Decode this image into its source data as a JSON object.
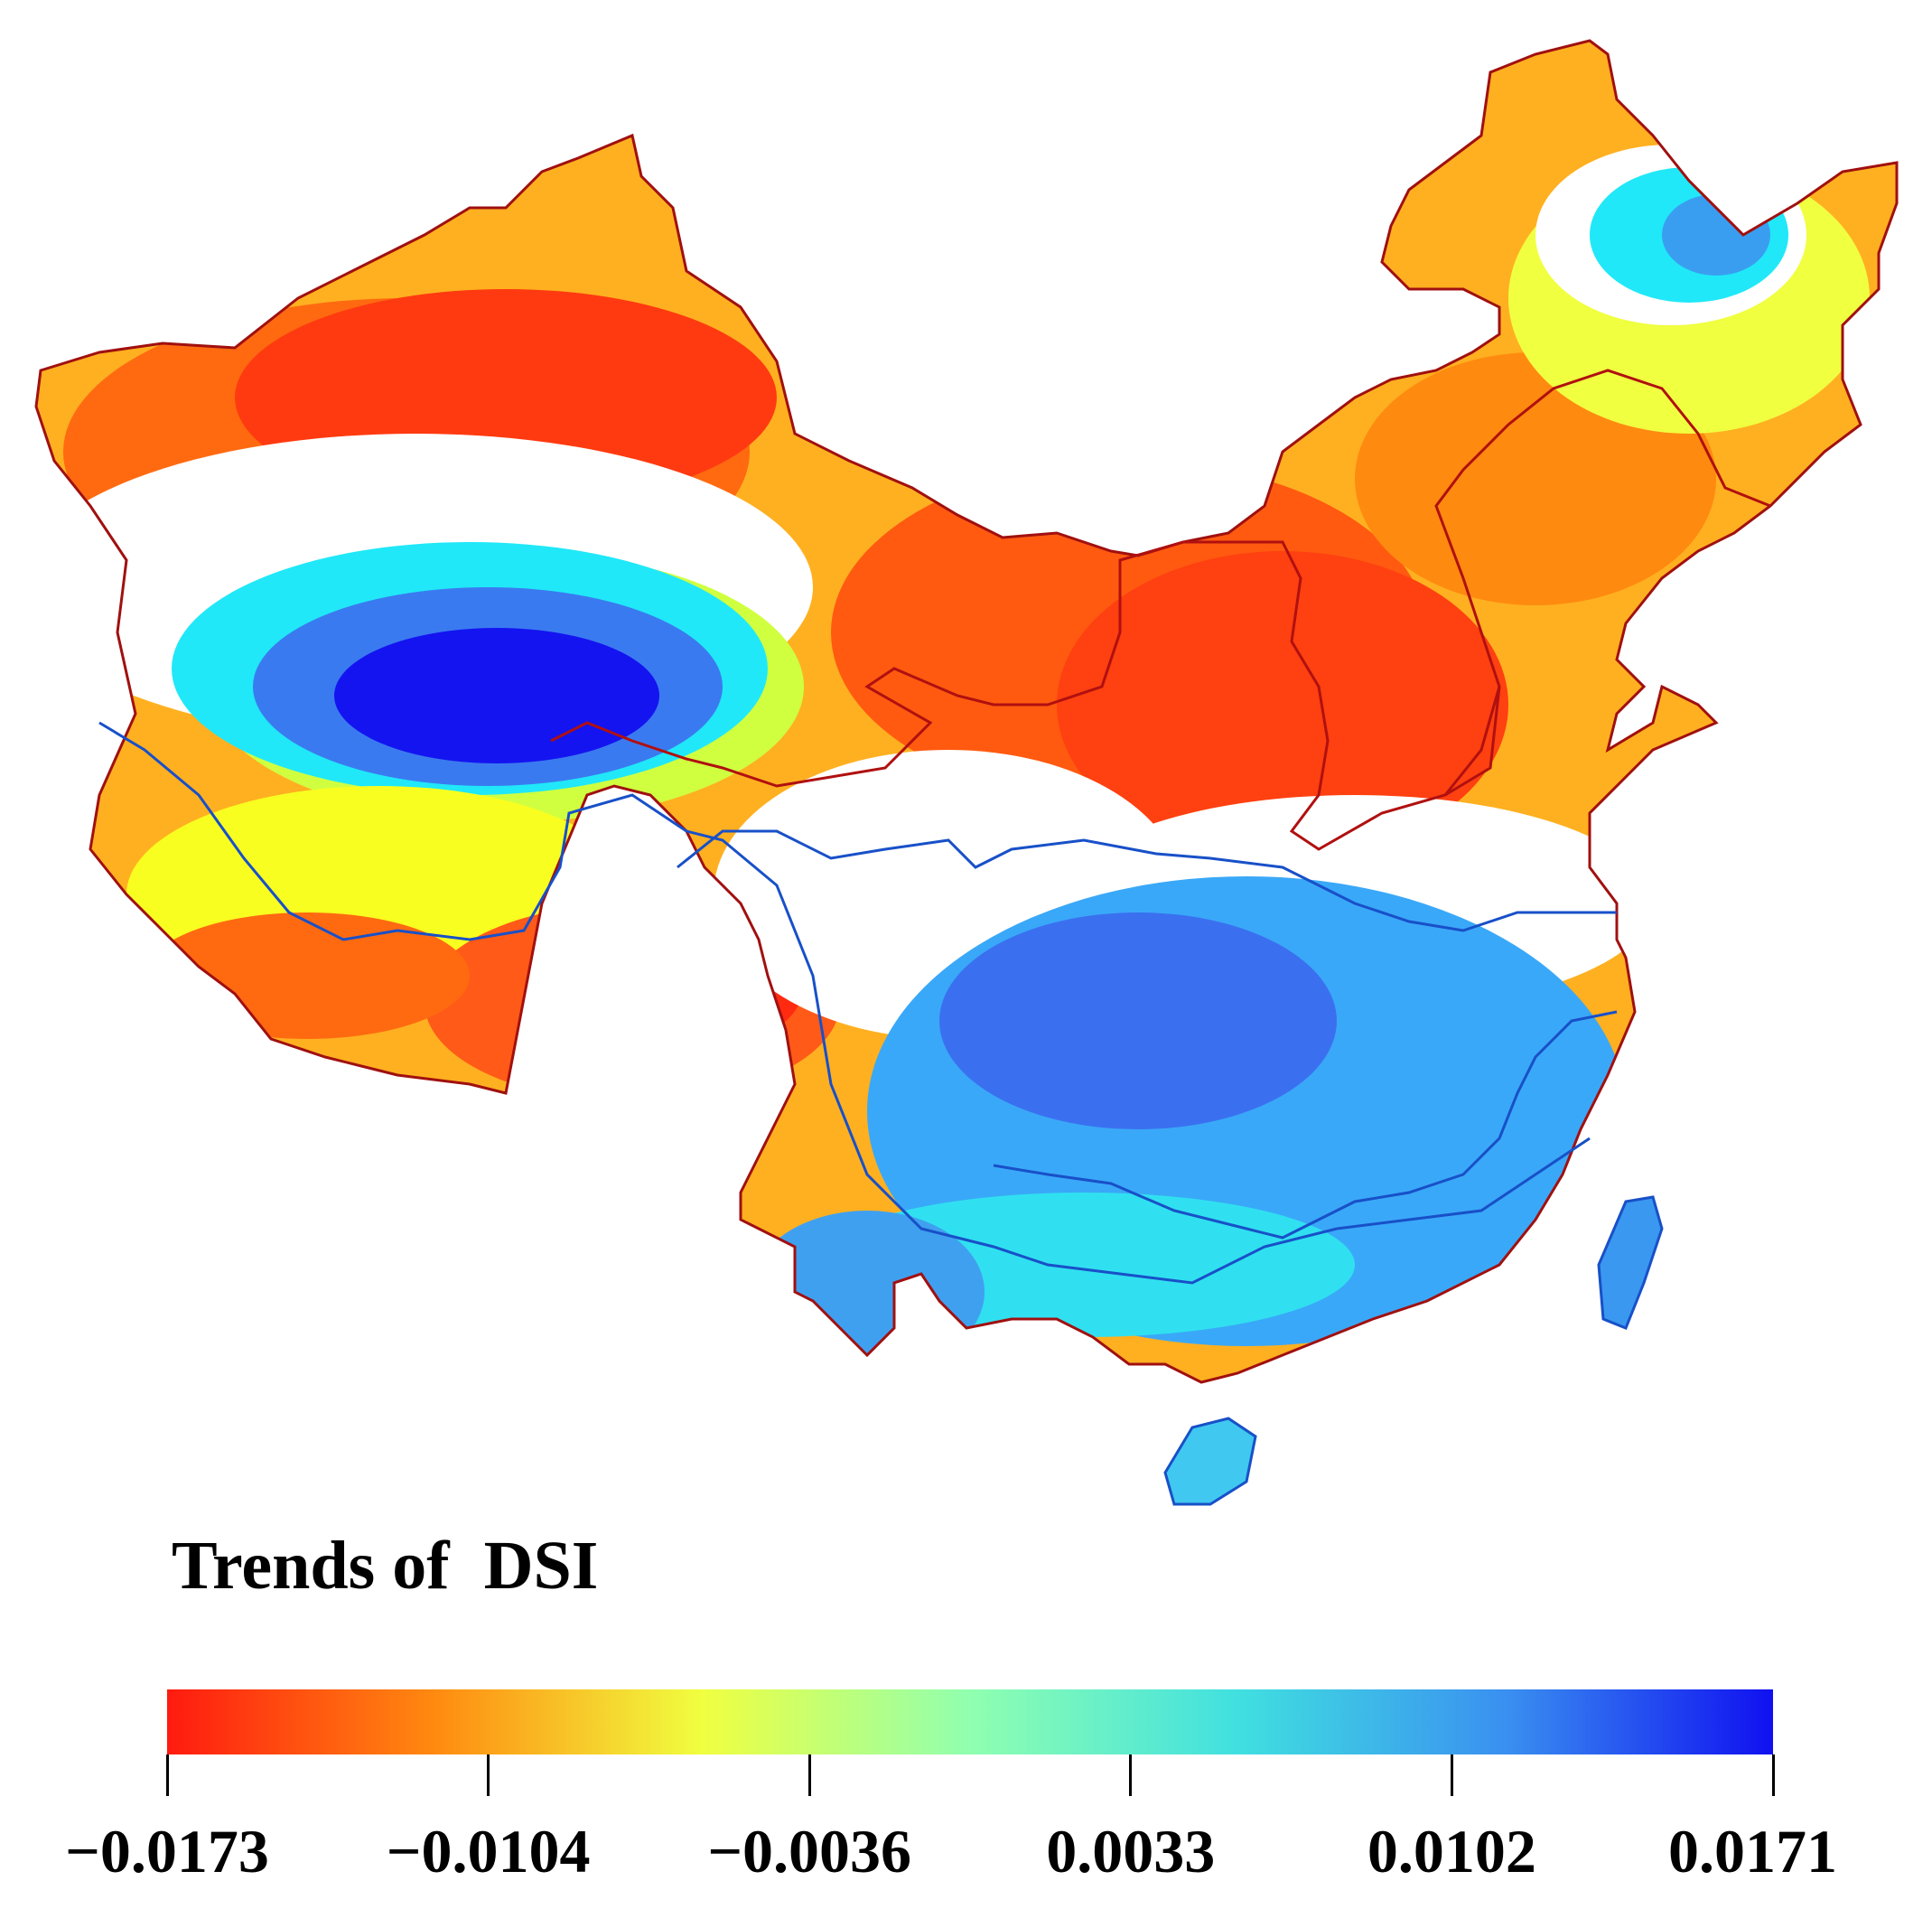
{
  "map": {
    "variable": "DSI",
    "regions": [
      {
        "name": "northwest-drying",
        "color": "#ff3a10"
      },
      {
        "name": "north-china-drying",
        "color": "#ff4a10"
      },
      {
        "name": "tibet-south-drying",
        "color": "#ff5a18"
      },
      {
        "name": "qaidam-wetting",
        "color": "#1414f0"
      },
      {
        "name": "south-china-wetting",
        "color": "#3aa8f8"
      },
      {
        "name": "northeast-wetting",
        "color": "#20e8f8"
      }
    ],
    "boundary_colors": {
      "north_basins": "#b01010",
      "south_basins": "#1850c8"
    }
  },
  "legend": {
    "title": "Trends of  DSI",
    "colorbar": {
      "min": -0.0173,
      "max": 0.0171,
      "colors": [
        "#ff1a10",
        "#ff8a10",
        "#f0ff40",
        "#90ffb0",
        "#40e0e0",
        "#3a90f0",
        "#1010f0"
      ],
      "ticks": [
        "−0.0173",
        "−0.0104",
        "−0.0036",
        "0.0033",
        "0.0102",
        "0.0171"
      ]
    }
  }
}
